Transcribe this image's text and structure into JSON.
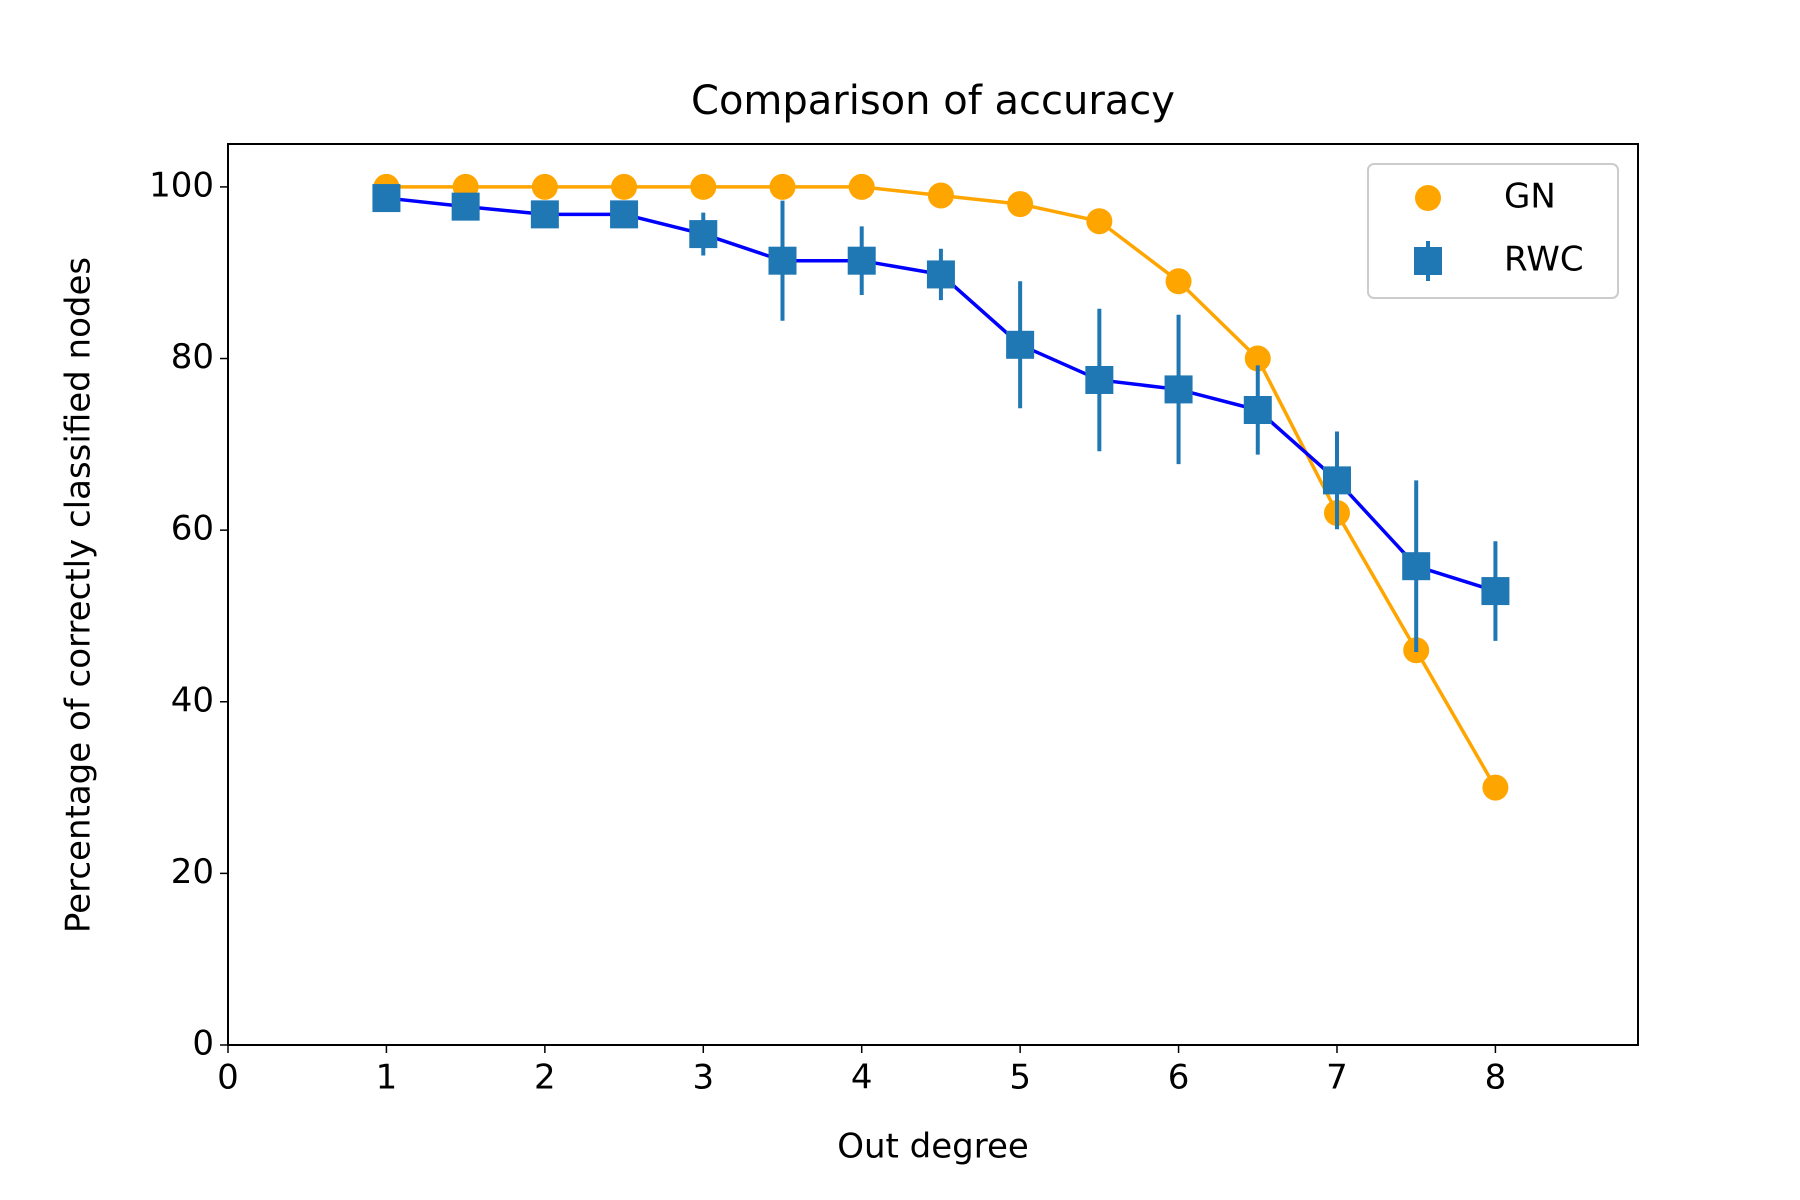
{
  "chart_data": {
    "type": "errorbar_line",
    "title": "Comparison of accuracy",
    "x_label": "Out degree",
    "y_label": "Percentage of correctly classified nodes",
    "x": [
      1,
      1.5,
      2,
      2.5,
      3,
      3.5,
      4,
      4.5,
      5,
      5.5,
      6,
      6.5,
      7,
      7.5,
      8
    ],
    "series": [
      {
        "name": "GN",
        "color": "#ffa500",
        "marker": "circle",
        "values": [
          100,
          100,
          100,
          100,
          100,
          100,
          100,
          99,
          98,
          96,
          89,
          80,
          62,
          46,
          30
        ]
      },
      {
        "name": "RWC",
        "color": "#1f77b4",
        "line_color": "#0000ff",
        "marker": "square",
        "values": [
          98.7,
          97.7,
          96.8,
          96.8,
          94.5,
          91.4,
          91.4,
          89.8,
          81.6,
          77.5,
          76.4,
          74.0,
          65.8,
          55.8,
          52.9
        ],
        "errors": [
          0.5,
          0.5,
          0.5,
          0.5,
          2.5,
          7.0,
          4.0,
          3.0,
          7.4,
          8.3,
          8.7,
          5.2,
          5.7,
          10.0,
          5.8
        ]
      }
    ],
    "xlim": [
      0,
      8.9
    ],
    "ylim": [
      0,
      105
    ],
    "xticks": [
      0,
      1,
      2,
      3,
      4,
      5,
      6,
      7,
      8
    ],
    "yticks": [
      0,
      20,
      40,
      60,
      80,
      100
    ],
    "legend": "upper right"
  }
}
